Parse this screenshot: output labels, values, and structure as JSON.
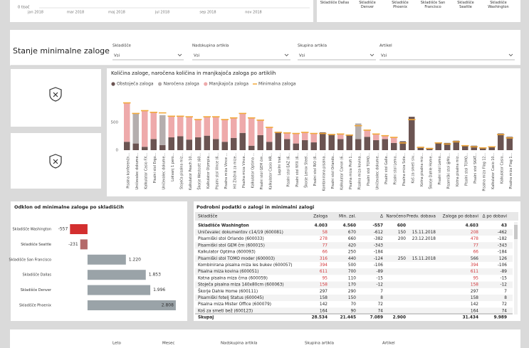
{
  "top_strip": {
    "axis_label": "0 tisoč",
    "months": [
      "jan 2018",
      "mar 2018",
      "maj 2018",
      "jul 2018",
      "sep 2018",
      "nov 2018"
    ],
    "warehouses": [
      "Skladišče Dallas",
      "Skladišče Denver",
      "Skladišče Phoenix",
      "Skladišče San Francisco",
      "Skladišče Seattle",
      "Skladišče Washington"
    ]
  },
  "main": {
    "title": "Stanje minimalne zaloge",
    "filters": [
      {
        "label": "Skladišče",
        "value": "Vsi"
      },
      {
        "label": "Nadskupina artikla",
        "value": "Vsi"
      },
      {
        "label": "Skupina artikla",
        "value": "Vsi"
      },
      {
        "label": "Artikel",
        "value": "Vsi"
      }
    ],
    "stock_chart": {
      "type": "bar",
      "stacked": true,
      "title": "Količina zaloge, naročena količina in manjkajoča zaloga po artiklih",
      "categories": [
        "Pisalna konferenčn...",
        "Uničevalec dokume...",
        "Kalkulator Casio FX...",
        "Pisalni stol Ergo...",
        "Uničevalec dokume...",
        "Lokvanj 1 pero...",
        "Stoječa pisalna miz...",
        "Kalkulator Peach 10...",
        "Škorje Westcott (60...",
        "Kalkulator Olympia...",
        "Pisalni stol Vince (6...",
        "Pisalna miza Vince ...",
        "Hit Zložnik za mize...",
        "Pisalna miza Vince...",
        "Kalkulator Optima ...",
        "Pisalni stol GEM črn...",
        "Kalkulator Casio HR...",
        "Lepilni trak...",
        "Pisalni stol EAZ (6...",
        "Pisalni stol NYX (6...",
        "Škorje Lenox Steel...",
        "Pisalni stol RIO (6...",
        "Kombinirana pisalna...",
        "Pisalni stol Orlando...",
        "Kalkulator Canon (6...",
        "Pisalna miza Profi 1...",
        "Pisalna miza kovina...",
        "Pisalni stol TOMO...",
        "Uničevalec dokume...",
        "Pisalni stol Galle...",
        "Pisalni stol Lemo...",
        "Pisalna miza Sole...",
        "Koš za smeti siv...",
        "Kotna pisalna miz...",
        "Škorje Dahle Home...",
        "Pisalni stol Lemo...",
        "Pisarniški stol @Mo...",
        "Kotna pisalna miz...",
        "Pisalni stol TOMO...",
        "Pisalni stol SKAT...",
        "Pisalna miza Flag 12...",
        "Kalkulator Casio 10...",
        "Kalkulator Casio...",
        "Pisalna miza Flag 1..."
      ],
      "series": [
        {
          "name": "Obstoječa zaloga",
          "color": "#6b5452",
          "values": [
            150,
            120,
            60,
            200,
            90,
            230,
            250,
            190,
            230,
            260,
            200,
            150,
            220,
            310,
            80,
            270,
            150,
            330,
            200,
            120,
            180,
            140,
            320,
            290,
            200,
            280,
            200,
            240,
            180,
            200,
            130,
            160,
            600,
            60,
            40,
            140,
            130,
            170,
            90,
            80,
            50,
            70,
            300,
            240
          ]
        },
        {
          "name": "Naročena zaloga",
          "color": "#b5aeae",
          "values": [
            0,
            540,
            0,
            0,
            540,
            0,
            0,
            0,
            0,
            0,
            0,
            0,
            0,
            0,
            0,
            0,
            0,
            0,
            0,
            0,
            0,
            0,
            0,
            0,
            0,
            0,
            280,
            0,
            0,
            0,
            0,
            0,
            0,
            0,
            0,
            0,
            0,
            0,
            0,
            0,
            0,
            0,
            0,
            0
          ]
        },
        {
          "name": "Manjkajoča zaloga",
          "color": "#eeaaab",
          "values": [
            700,
            0,
            650,
            480,
            0,
            380,
            360,
            410,
            320,
            340,
            400,
            400,
            360,
            350,
            500,
            270,
            260,
            0,
            110,
            180,
            140,
            160,
            0,
            0,
            90,
            0,
            0,
            120,
            110,
            60,
            100,
            0,
            0,
            0,
            0,
            0,
            0,
            0,
            0,
            0,
            0,
            0,
            0,
            0
          ]
        },
        {
          "name": "Minimalna zaloga",
          "color": "#f2a93b",
          "type": "line",
          "values": [
            850,
            660,
            710,
            680,
            670,
            610,
            610,
            600,
            550,
            600,
            600,
            550,
            580,
            660,
            580,
            540,
            410,
            320,
            310,
            300,
            320,
            300,
            300,
            280,
            290,
            270,
            440,
            360,
            290,
            260,
            230,
            130,
            550,
            50,
            30,
            130,
            110,
            150,
            80,
            60,
            40,
            60,
            280,
            220
          ]
        }
      ],
      "ylim": [
        0,
        1100
      ],
      "yticks": [
        0,
        500
      ]
    },
    "deviation_chart": {
      "type": "barh",
      "title": "Odklon od minimalne zaloge po skladiščih",
      "categories": [
        "Skladišče Washington",
        "Skladišče Seattle",
        "Skladišče San Francisco",
        "Skladišče Dallas",
        "Skladišče Denver",
        "Skladišče Phoenix"
      ],
      "values": [
        -557,
        -231,
        1220,
        1853,
        1996,
        2808
      ],
      "value_labels": [
        "-557",
        "-231",
        "1.220",
        "1.853",
        "1.996",
        "2.808"
      ],
      "colors": [
        "#d32f2f",
        "#b46a6a",
        "#9aa3a8",
        "#9aa3a8",
        "#9aa3a8",
        "#9aa3a8"
      ],
      "xlim": [
        -700,
        2900
      ]
    },
    "table": {
      "title": "Podrobni podatki o zalogi in minimalni zalogi",
      "columns": [
        "Skladišče",
        "Zaloga",
        "Min. zal.",
        "Δ",
        "Naročeno",
        "Predv. dobava",
        "Zaloga po dobavi",
        "Δ po dobavi"
      ],
      "group": [
        "Skladišče Washington",
        "4.003",
        "4.560",
        "-557",
        "600",
        "",
        "4.603",
        "43"
      ],
      "rows": [
        [
          "Uničevalec dokumentov c14/19 (600081)",
          "58",
          "670",
          "-612",
          "150",
          "15.11.2018",
          "208",
          "-462"
        ],
        [
          "Pisarniški stol Orlando (600033)",
          "278",
          "660",
          "-382",
          "200",
          "23.12.2018",
          "478",
          "-182"
        ],
        [
          "Pisarniški stol GEM črn (600015)",
          "77",
          "420",
          "-343",
          "",
          "",
          "77",
          "-343"
        ],
        [
          "Kalkulator Optima (600093)",
          "66",
          "250",
          "-184",
          "",
          "",
          "66",
          "-184"
        ],
        [
          "Pisarniški stol TOMO moder (600003)",
          "316",
          "440",
          "-124",
          "250",
          "15.11.2018",
          "566",
          "126"
        ],
        [
          "Kombinirana pisalna miza les bukev (600057)",
          "394",
          "500",
          "-106",
          "",
          "",
          "394",
          "-106"
        ],
        [
          "Pisalna miza kovina (600051)",
          "611",
          "700",
          "-89",
          "",
          "",
          "611",
          "-89"
        ],
        [
          "Kotna pisalna miza črna (600059)",
          "95",
          "110",
          "-15",
          "",
          "",
          "95",
          "-15"
        ],
        [
          "Stoječa pisalna miza 140x80cm (600063)",
          "158",
          "170",
          "-12",
          "",
          "",
          "158",
          "-12"
        ],
        [
          "Škorje Dahle Home (600111)",
          "297",
          "290",
          "7",
          "",
          "",
          "297",
          "7"
        ],
        [
          "Pisarniški fotelj Status (600045)",
          "158",
          "150",
          "8",
          "",
          "",
          "158",
          "8"
        ],
        [
          "Pisalna miza Mister Office (600079)",
          "142",
          "70",
          "72",
          "",
          "",
          "142",
          "72"
        ],
        [
          "Koš za smeti bež (600123)",
          "164",
          "90",
          "74",
          "",
          "",
          "164",
          "74"
        ]
      ],
      "total": [
        "Skupaj",
        "28.534",
        "21.445",
        "7.089",
        "2.900",
        "",
        "31.434",
        "9.989"
      ],
      "negative_color": "#d13438"
    }
  },
  "bottom_filters": [
    "Leto",
    "Mesec",
    "Nadskupina artikla",
    "Skupina artikla",
    "Artikel"
  ]
}
